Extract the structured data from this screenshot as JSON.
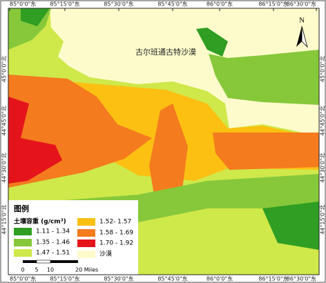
{
  "map": {
    "label": "古尔班通古特沙漠",
    "north": "N",
    "longitudes": [
      "85°0'0\"东",
      "85°15'0\"东",
      "85°30'0\"东",
      "85°45'0\"东",
      "86°0'0\"东",
      "86°15'0\"东",
      "86°30'0\"东"
    ],
    "latitudes": [
      "45°0'0\"北",
      "44°45'0\"北",
      "44°30'0\"北",
      "44°15'0\"北"
    ],
    "legend": {
      "title": "图例",
      "subtitle": "土壤容重 (g/cm³)",
      "items": [
        {
          "label": "1.11 - 1.34",
          "color": "#2f9e22"
        },
        {
          "label": "1.35 - 1.46",
          "color": "#86c83a"
        },
        {
          "label": "1.47 - 1.51",
          "color": "#cfe84a"
        },
        {
          "label": "1.52- 1.57",
          "color": "#fcc012"
        },
        {
          "label": "1.58 - 1.69",
          "color": "#f47b1e"
        },
        {
          "label": "1.70 - 1.92",
          "color": "#e5141b"
        },
        {
          "label": "沙漠",
          "color": "#fdfbcb"
        }
      ]
    },
    "scale": [
      "0",
      "5",
      "10",
      "20 Miles"
    ]
  }
}
